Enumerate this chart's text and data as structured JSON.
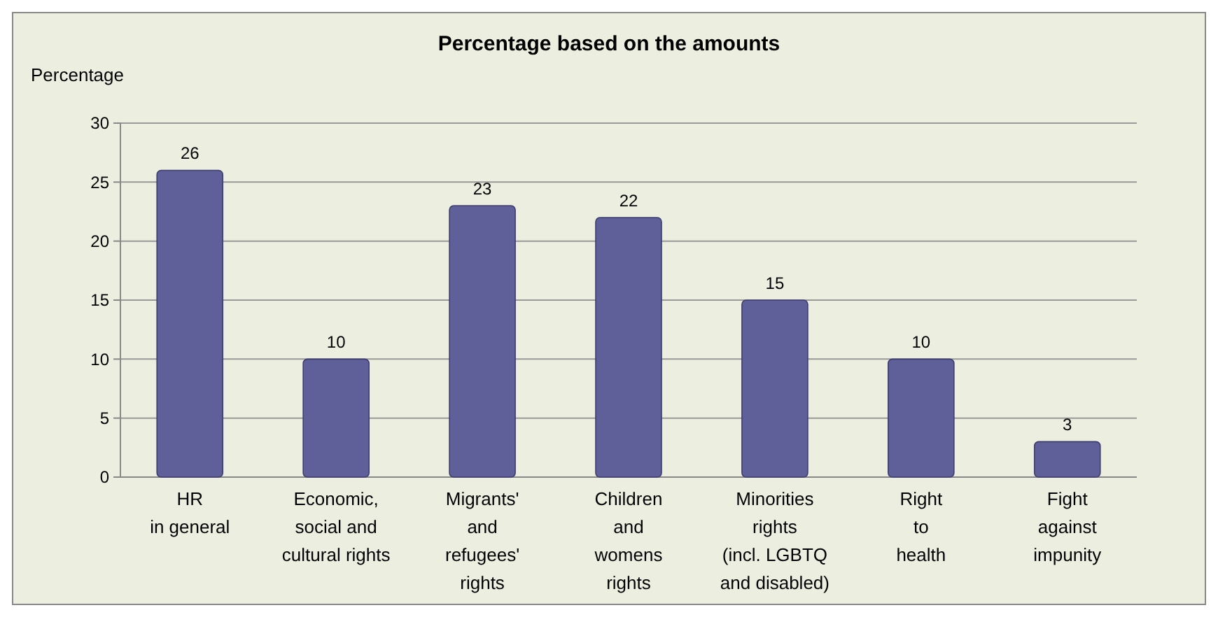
{
  "chart_data": {
    "type": "bar",
    "title": "Percentage based on the amounts",
    "ylabel": "Percentage",
    "categories": [
      "HR\nin general",
      "Economic,\nsocial and\ncultural rights",
      "Migrants'\nand\nrefugees'\nrights",
      "Children\nand\nwomens\nrights",
      "Minorities\nrights\n(incl. LGBTQ\nand disabled)",
      "Right\nto\nhealth",
      "Fight\nagainst\nimpunity"
    ],
    "values": [
      26,
      10,
      23,
      22,
      15,
      10,
      3
    ],
    "color": "#5f5f9a",
    "ylim": [
      0,
      30
    ],
    "yticks": [
      0,
      5,
      10,
      15,
      20,
      25,
      30
    ],
    "grid": "y",
    "data_labels": true
  }
}
